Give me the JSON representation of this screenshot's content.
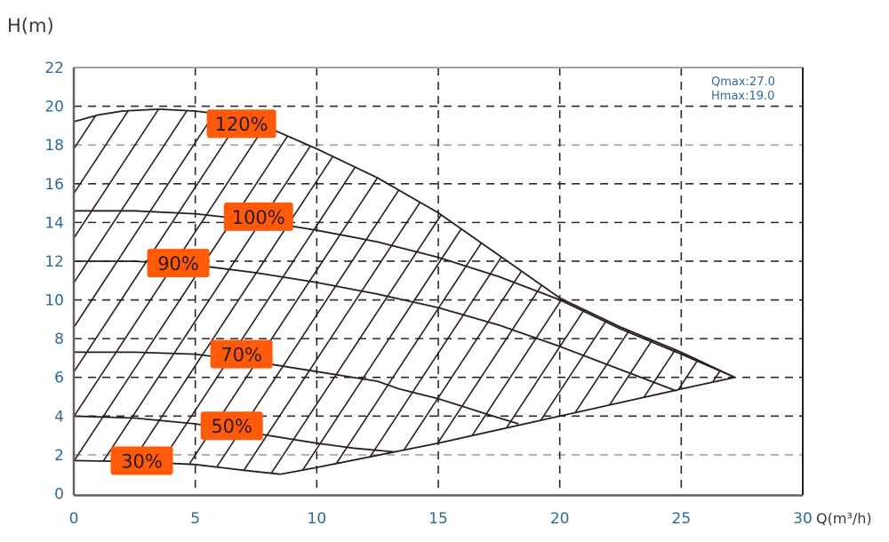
{
  "chart_data": {
    "type": "line",
    "title": "",
    "xlabel": "Q(m³/h)",
    "ylabel": "H(m)",
    "xlim": [
      0,
      30
    ],
    "ylim": [
      0,
      22
    ],
    "xticks": [
      0,
      5,
      10,
      15,
      20,
      25,
      30
    ],
    "yticks": [
      0,
      2,
      4,
      6,
      8,
      10,
      12,
      14,
      16,
      18,
      20,
      22
    ],
    "grid": true,
    "annotations": [
      "Qmax:27.0",
      "Hmax:19.0"
    ],
    "colors": {
      "label_bg": "#ff5a0a",
      "line": "#2a1e1c",
      "tick_text": "#2f6a96",
      "grid": "#2a2a2a",
      "grid_light": "#a0a0a0"
    },
    "series": [
      {
        "name": "120%",
        "label_at": [
          6.9,
          19.1
        ],
        "points": [
          [
            0,
            19.2
          ],
          [
            1,
            19.55
          ],
          [
            2,
            19.75
          ],
          [
            3.5,
            19.85
          ],
          [
            5,
            19.75
          ],
          [
            6,
            19.6
          ],
          [
            8,
            18.9
          ],
          [
            10,
            17.8
          ],
          [
            12.5,
            16.3
          ],
          [
            15,
            14.5
          ],
          [
            17.5,
            12.3
          ],
          [
            20,
            10.1
          ],
          [
            22.5,
            8.6
          ],
          [
            25,
            7.3
          ],
          [
            27.2,
            6.0
          ]
        ]
      },
      {
        "name": "100%",
        "label_at": [
          7.6,
          14.3
        ],
        "points": [
          [
            0,
            14.6
          ],
          [
            2.5,
            14.6
          ],
          [
            5,
            14.45
          ],
          [
            7.5,
            14.1
          ],
          [
            10,
            13.6
          ],
          [
            12.5,
            13.0
          ],
          [
            15,
            12.2
          ],
          [
            17.5,
            11.2
          ],
          [
            20,
            10.0
          ],
          [
            22.5,
            8.5
          ],
          [
            25,
            7.2
          ],
          [
            27.2,
            6.0
          ]
        ]
      },
      {
        "name": "90%",
        "label_at": [
          4.3,
          11.9
        ],
        "points": [
          [
            0,
            12.0
          ],
          [
            2.5,
            12.0
          ],
          [
            5,
            11.8
          ],
          [
            7.5,
            11.4
          ],
          [
            10,
            10.9
          ],
          [
            12.5,
            10.3
          ],
          [
            15,
            9.6
          ],
          [
            17.5,
            8.7
          ],
          [
            20,
            7.6
          ],
          [
            22.5,
            6.4
          ],
          [
            24.8,
            5.3
          ]
        ]
      },
      {
        "name": "70%",
        "label_at": [
          6.9,
          7.2
        ],
        "points": [
          [
            0,
            7.3
          ],
          [
            2.5,
            7.3
          ],
          [
            5,
            7.2
          ],
          [
            7.5,
            6.8
          ],
          [
            10,
            6.3
          ],
          [
            12.5,
            5.8
          ],
          [
            13.4,
            5.4
          ],
          [
            15,
            4.9
          ],
          [
            17.1,
            4.06
          ],
          [
            18.3,
            3.6
          ]
        ]
      },
      {
        "name": "50%",
        "label_at": [
          6.5,
          3.5
        ],
        "points": [
          [
            0,
            4.0
          ],
          [
            2.5,
            3.9
          ],
          [
            5,
            3.6
          ],
          [
            7.5,
            3.1
          ],
          [
            10,
            2.6
          ],
          [
            11.5,
            2.35
          ],
          [
            13.2,
            2.15
          ]
        ]
      },
      {
        "name": "30%",
        "label_at": [
          2.8,
          1.7
        ],
        "points": [
          [
            0,
            1.7
          ],
          [
            2.5,
            1.65
          ],
          [
            5,
            1.5
          ],
          [
            7,
            1.2
          ],
          [
            8.5,
            1.0
          ]
        ]
      }
    ],
    "lower_boundary": [
      [
        8.5,
        1.0
      ],
      [
        10,
        1.35
      ],
      [
        15,
        2.6
      ],
      [
        20,
        4.0
      ],
      [
        25,
        5.4
      ],
      [
        27.2,
        6.0
      ]
    ]
  }
}
